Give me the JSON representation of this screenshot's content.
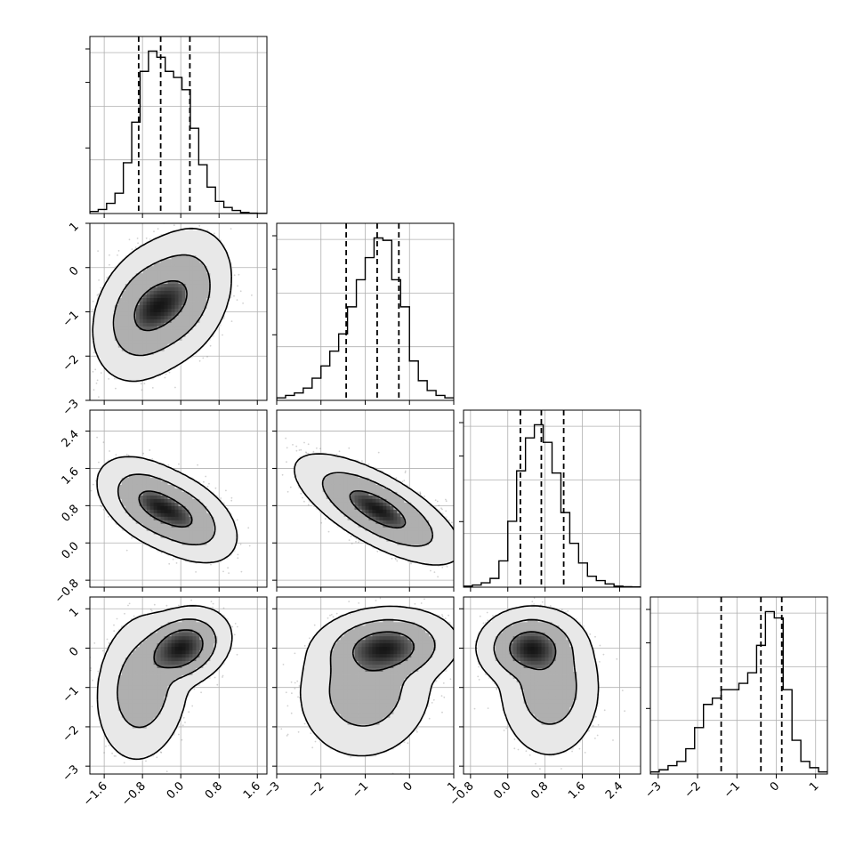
{
  "figure": {
    "type": "corner-plot",
    "n_params": 4,
    "colors": {
      "ink": "#000000",
      "grid": "#b0b0b0",
      "points": "#7a7a7a"
    }
  },
  "chart_data": {
    "type": "corner",
    "params": [
      {
        "index": 0,
        "label": "",
        "range": [
          -1.9,
          1.8
        ],
        "ticks": [
          -1.6,
          -0.8,
          0.0,
          0.8,
          1.6
        ],
        "tick_labels": [
          "−1.6",
          "−0.8",
          "0.0",
          "0.8",
          "1.6"
        ]
      },
      {
        "index": 1,
        "label": "",
        "range": [
          -3.0,
          1.0
        ],
        "ticks": [
          -3,
          -2,
          -1,
          0,
          1
        ],
        "tick_labels": [
          "−3",
          "−2",
          "−1",
          "0",
          "1"
        ]
      },
      {
        "index": 2,
        "label": "",
        "range": [
          -0.95,
          2.85
        ],
        "ticks": [
          -0.8,
          0.0,
          0.8,
          1.6,
          2.4
        ],
        "tick_labels": [
          "−0.8",
          "0.0",
          "0.8",
          "1.6",
          "2.4"
        ]
      },
      {
        "index": 3,
        "label": "",
        "range": [
          -3.2,
          1.3
        ],
        "ticks": [
          -3,
          -2,
          -1,
          0,
          1
        ],
        "tick_labels": [
          "−3",
          "−2",
          "−1",
          "0",
          "1"
        ]
      }
    ],
    "histograms": [
      {
        "param": 0,
        "quantiles": [
          -0.88,
          -0.42,
          0.19
        ],
        "bin_edges": [
          -1.9,
          -1.725,
          -1.55,
          -1.375,
          -1.2,
          -1.025,
          -0.85,
          -0.675,
          -0.5,
          -0.325,
          -0.15,
          0.025,
          0.2,
          0.375,
          0.55,
          0.725,
          0.9,
          1.075,
          1.25,
          1.425,
          1.6,
          1.8
        ],
        "counts": [
          1,
          2,
          5,
          10,
          25,
          45,
          70,
          80,
          77,
          70,
          67,
          61,
          42,
          24,
          13,
          6,
          3,
          1.5,
          0.5,
          0.2,
          0.1
        ]
      },
      {
        "param": 1,
        "quantiles": [
          -1.43,
          -0.73,
          -0.24
        ],
        "bin_edges": [
          -3.0,
          -2.8,
          -2.6,
          -2.4,
          -2.2,
          -2.0,
          -1.8,
          -1.6,
          -1.4,
          -1.2,
          -1.0,
          -0.8,
          -0.6,
          -0.4,
          -0.2,
          0.0,
          0.2,
          0.4,
          0.6,
          0.8,
          1.0
        ],
        "counts": [
          1,
          2,
          3,
          5,
          9,
          14,
          20,
          27,
          38,
          49,
          58,
          66,
          65,
          49,
          38,
          16,
          8,
          4,
          2,
          1
        ]
      },
      {
        "param": 2,
        "quantiles": [
          0.27,
          0.72,
          1.2
        ],
        "bin_edges": [
          -0.95,
          -0.76,
          -0.57,
          -0.38,
          -0.19,
          0.0,
          0.19,
          0.38,
          0.57,
          0.76,
          0.95,
          1.14,
          1.33,
          1.52,
          1.71,
          1.9,
          2.09,
          2.28,
          2.47,
          2.66,
          2.85
        ],
        "counts": [
          0.5,
          1,
          2,
          4,
          12,
          30,
          53,
          68,
          74,
          66,
          52,
          34,
          20,
          11,
          5,
          3,
          1.5,
          0.5,
          0.2,
          0.1
        ]
      },
      {
        "param": 3,
        "quantiles": [
          -1.4,
          -0.39,
          0.14
        ],
        "bin_edges": [
          -3.2,
          -2.975,
          -2.75,
          -2.525,
          -2.3,
          -2.075,
          -1.85,
          -1.625,
          -1.4,
          -1.175,
          -0.95,
          -0.725,
          -0.5,
          -0.275,
          -0.05,
          0.175,
          0.4,
          0.625,
          0.85,
          1.075,
          1.3
        ],
        "counts": [
          1,
          2,
          4,
          6,
          12,
          22,
          33,
          36,
          40,
          40,
          43,
          48,
          61,
          77,
          74,
          40,
          16,
          6,
          3,
          1
        ]
      }
    ],
    "pairs": [
      {
        "row": 1,
        "col": 0,
        "x_param": 0,
        "y_param": 1,
        "components": [
          {
            "mean": [
              -0.7,
              -1.0
            ],
            "cov": [
              [
                0.16,
                0.06
              ],
              [
                0.06,
                0.3
              ]
            ],
            "weight": 0.55
          },
          {
            "mean": [
              -0.05,
              -0.65
            ],
            "cov": [
              [
                0.16,
                0.06
              ],
              [
                0.06,
                0.3
              ]
            ],
            "weight": 0.45
          }
        ]
      },
      {
        "row": 2,
        "col": 0,
        "x_param": 0,
        "y_param": 2,
        "components": [
          {
            "mean": [
              -0.6,
              0.85
            ],
            "cov": [
              [
                0.16,
                -0.06
              ],
              [
                -0.06,
                0.12
              ]
            ],
            "weight": 0.55
          },
          {
            "mean": [
              0.05,
              0.55
            ],
            "cov": [
              [
                0.16,
                -0.06
              ],
              [
                -0.06,
                0.12
              ]
            ],
            "weight": 0.45
          }
        ]
      },
      {
        "row": 2,
        "col": 1,
        "x_param": 1,
        "y_param": 2,
        "components": [
          {
            "mean": [
              -0.72,
              0.72
            ],
            "cov": [
              [
                0.4,
                -0.18
              ],
              [
                -0.18,
                0.16
              ]
            ],
            "weight": 1.0
          }
        ]
      },
      {
        "row": 3,
        "col": 0,
        "x_param": 0,
        "y_param": 3,
        "components": [
          {
            "mean": [
              0.0,
              0.0
            ],
            "cov": [
              [
                0.12,
                0.03
              ],
              [
                0.03,
                0.12
              ]
            ],
            "weight": 0.6
          },
          {
            "mean": [
              -0.8,
              -1.0
            ],
            "cov": [
              [
                0.12,
                0.03
              ],
              [
                0.03,
                0.45
              ]
            ],
            "weight": 0.4
          }
        ]
      },
      {
        "row": 3,
        "col": 1,
        "x_param": 1,
        "y_param": 3,
        "components": [
          {
            "mean": [
              -0.55,
              0.0
            ],
            "cov": [
              [
                0.3,
                0.02
              ],
              [
                0.02,
                0.12
              ]
            ],
            "weight": 0.6
          },
          {
            "mean": [
              -1.0,
              -1.05
            ],
            "cov": [
              [
                0.3,
                0.02
              ],
              [
                0.02,
                0.4
              ]
            ],
            "weight": 0.4
          }
        ]
      },
      {
        "row": 3,
        "col": 2,
        "x_param": 2,
        "y_param": 3,
        "components": [
          {
            "mean": [
              0.5,
              0.0
            ],
            "cov": [
              [
                0.15,
                0.0
              ],
              [
                0.0,
                0.12
              ]
            ],
            "weight": 0.6
          },
          {
            "mean": [
              0.9,
              -1.0
            ],
            "cov": [
              [
                0.15,
                0.0
              ],
              [
                0.0,
                0.4
              ]
            ],
            "weight": 0.4
          }
        ]
      }
    ],
    "contour_levels": [
      0.39,
      0.86,
      0.99
    ],
    "grid": true
  }
}
